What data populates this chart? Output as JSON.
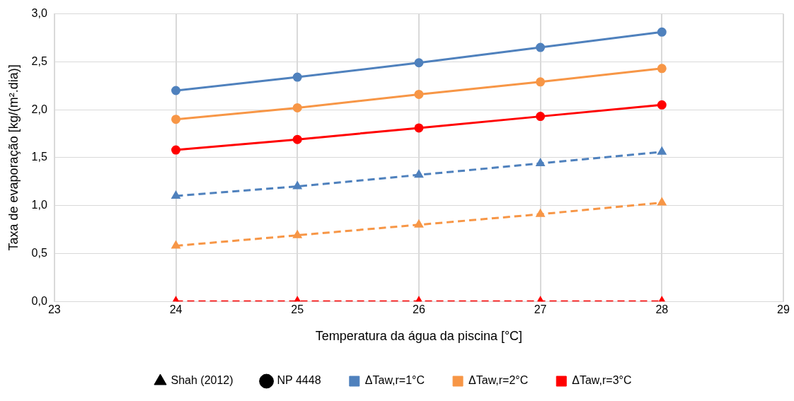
{
  "chart_data": {
    "type": "line",
    "xlabel": "Temperatura da água da piscina [°C]",
    "ylabel": "Taxa de evaporação [kg/(m².dia)]",
    "x": [
      24,
      25,
      26,
      27,
      28
    ],
    "xlim": [
      23,
      29
    ],
    "xticks": [
      23,
      24,
      25,
      26,
      27,
      28,
      29
    ],
    "ylim": [
      0,
      3
    ],
    "yticks": [
      {
        "value": 0,
        "label": "0,0"
      },
      {
        "value": 0.5,
        "label": "0,5"
      },
      {
        "value": 1,
        "label": "1,0"
      },
      {
        "value": 1.5,
        "label": "1,5"
      },
      {
        "value": 2,
        "label": "2,0"
      },
      {
        "value": 2.5,
        "label": "2,5"
      },
      {
        "value": 3,
        "label": "3,0"
      }
    ],
    "grid": true,
    "legend": "bottom",
    "series": [
      {
        "name": "Shah (2012)",
        "color": "#000000",
        "line_style": "dashed",
        "marker": "triangle",
        "values": [
          null,
          null,
          null,
          null,
          null
        ]
      },
      {
        "name": "NP 4448",
        "color": "#000000",
        "line_style": "solid",
        "marker": "circle",
        "values": [
          null,
          null,
          null,
          null,
          null
        ]
      },
      {
        "name": "ΔTaw,r=1°C",
        "color": "#4f81bd",
        "line_style": "solid",
        "marker": "circle",
        "values": [
          2.2,
          2.34,
          2.49,
          2.65,
          2.81
        ]
      },
      {
        "name": "ΔTaw,r=2°C",
        "color": "#f79646",
        "line_style": "solid",
        "marker": "circle",
        "values": [
          1.9,
          2.02,
          2.16,
          2.29,
          2.43
        ]
      },
      {
        "name": "ΔTaw,r=3°C",
        "color": "#ff0000",
        "line_style": "solid",
        "marker": "circle",
        "values": [
          1.58,
          1.69,
          1.81,
          1.93,
          2.05
        ]
      },
      {
        "color": "#4f81bd",
        "line_style": "dashed",
        "marker": "triangle",
        "values": [
          1.1,
          1.2,
          1.32,
          1.44,
          1.56
        ]
      },
      {
        "color": "#f79646",
        "line_style": "dashed",
        "marker": "triangle",
        "values": [
          0.58,
          0.69,
          0.8,
          0.91,
          1.03
        ]
      },
      {
        "color": "#ff0000",
        "line_style": "dashed",
        "marker": "triangle",
        "values": [
          0,
          0,
          0,
          0,
          0
        ]
      }
    ]
  }
}
